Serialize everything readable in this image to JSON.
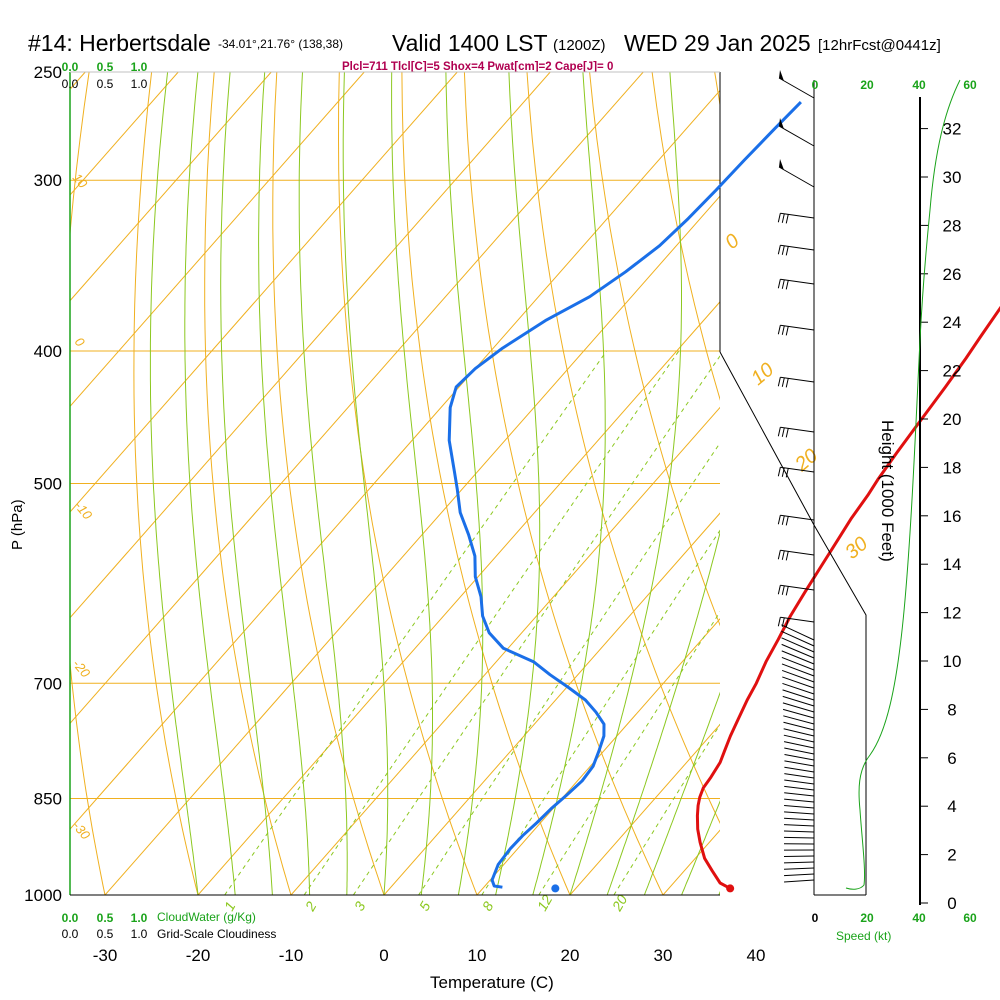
{
  "header": {
    "station": "#14: Herbertsdale",
    "coords": "-34.01°,21.76° (138,38)",
    "valid": "Valid 1400 LST",
    "utc": "(1200Z)",
    "date": "WED 29 Jan 2025",
    "fcst": "[12hrFcst@0441z]"
  },
  "indices": "Plcl=711 Tlcl[C]=5 Shox=4 Pwat[cm]=2 Cape[J]= 0",
  "colors": {
    "temperature": "#e01010",
    "dewpoint": "#1a6fe8",
    "isotherm": "#f0b020",
    "dry_adiabat": "#f0b020",
    "moist_adiabat": "#8cc820",
    "mixing_ratio": "#8cc820",
    "green_text": "#1aa31a",
    "index_text": "#b00050"
  },
  "chart_data": {
    "type": "skew-t",
    "title": "#14: Herbertsdale",
    "xlabel": "Temperature (C)",
    "ylabel": "P (hPa)",
    "y2label": "Height (1000 Feet)",
    "xlim": [
      -30,
      40
    ],
    "x_ticks": [
      -30,
      -20,
      -10,
      0,
      10,
      20,
      30,
      40
    ],
    "pressure_ticks": [
      250,
      300,
      400,
      500,
      700,
      850,
      1000
    ],
    "height_ticks": [
      0,
      2,
      4,
      6,
      8,
      10,
      12,
      14,
      16,
      18,
      20,
      22,
      24,
      26,
      28,
      30,
      32
    ],
    "speed_ticks": [
      0,
      20,
      40,
      60
    ],
    "speed_label": "Speed (kt)",
    "cloud_ticks": [
      "0.0",
      "0.5",
      "1.0"
    ],
    "cloudwater_label": "CloudWater (g/Kg)",
    "cloudiness_label": "Grid-Scale Cloudiness",
    "isotherm_labels": [
      "0",
      "10",
      "20",
      "30"
    ],
    "dry_adiabat_labels": [
      "10",
      "0",
      "-10",
      "-20",
      "-30"
    ],
    "mixing_ratio_labels": [
      "1",
      "2",
      "3",
      "5",
      "8",
      "12",
      "20"
    ],
    "series": [
      {
        "name": "Temperature",
        "points": [
          [
            36.6,
            989
          ],
          [
            35,
            980
          ],
          [
            33,
            960
          ],
          [
            31,
            940
          ],
          [
            29,
            915
          ],
          [
            27.5,
            895
          ],
          [
            26.2,
            875
          ],
          [
            25.3,
            860
          ],
          [
            24.7,
            848
          ],
          [
            24.2,
            835
          ],
          [
            24.0,
            820
          ],
          [
            23.6,
            800
          ],
          [
            23.0,
            785
          ],
          [
            22.2,
            765
          ],
          [
            21.5,
            745
          ],
          [
            20.6,
            720
          ],
          [
            20.0,
            700
          ],
          [
            19.0,
            675
          ],
          [
            18.2,
            650
          ],
          [
            17.3,
            625
          ],
          [
            16.6,
            600
          ],
          [
            15.9,
            575
          ],
          [
            15.2,
            550
          ],
          [
            14.6,
            530
          ],
          [
            14.2,
            510
          ],
          [
            13.8,
            497
          ],
          [
            13.3,
            475
          ],
          [
            12.8,
            450
          ],
          [
            12.3,
            425
          ],
          [
            11.8,
            405
          ],
          [
            11.3,
            390
          ],
          [
            10.5,
            365
          ],
          [
            9.8,
            345
          ],
          [
            8.8,
            320
          ],
          [
            8.0,
            300
          ],
          [
            7.0,
            280
          ],
          [
            6.4,
            263
          ]
        ]
      },
      {
        "name": "Dewpoint",
        "points": [
          [
            12.0,
            987
          ],
          [
            11.0,
            985
          ],
          [
            10.2,
            975
          ],
          [
            9.4,
            950
          ],
          [
            9.2,
            925
          ],
          [
            9.3,
            905
          ],
          [
            9.6,
            885
          ],
          [
            9.8,
            865
          ],
          [
            10.2,
            845
          ],
          [
            10.5,
            825
          ],
          [
            10.3,
            805
          ],
          [
            9.5,
            785
          ],
          [
            8.6,
            765
          ],
          [
            7.5,
            750
          ],
          [
            5.5,
            735
          ],
          [
            3.2,
            720
          ],
          [
            0.2,
            705
          ],
          [
            -3.0,
            690
          ],
          [
            -6.0,
            675
          ],
          [
            -10.5,
            660
          ],
          [
            -13.5,
            643
          ],
          [
            -15.8,
            625
          ],
          [
            -17.8,
            605
          ],
          [
            -20.3,
            585
          ],
          [
            -22.3,
            565
          ],
          [
            -25.0,
            545
          ],
          [
            -28.0,
            525
          ],
          [
            -30.5,
            505
          ],
          [
            -32.5,
            490
          ],
          [
            -36.0,
            465
          ],
          [
            -39.0,
            440
          ],
          [
            -40.3,
            425
          ],
          [
            -40.0,
            412
          ],
          [
            -39.0,
            398
          ],
          [
            -37.0,
            380
          ],
          [
            -34.5,
            365
          ],
          [
            -33.0,
            350
          ],
          [
            -31.8,
            335
          ],
          [
            -31.3,
            320
          ],
          [
            -31.0,
            305
          ],
          [
            -30.8,
            290
          ],
          [
            -30.5,
            275
          ],
          [
            -30.2,
            263
          ]
        ]
      }
    ],
    "surface_dewpoint_marker": [
      17.8,
      989
    ],
    "surface_temperature_marker": [
      36.6,
      989
    ]
  }
}
